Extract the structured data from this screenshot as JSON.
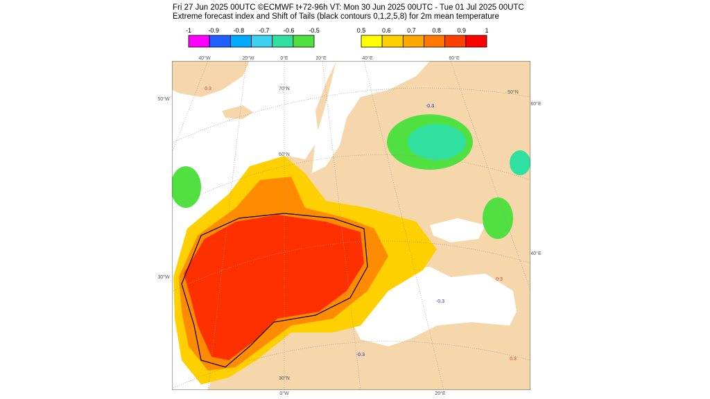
{
  "header": {
    "line1": "Fri 27 Jun 2025 00UTC ©ECMWF t+72-96h  VT: Mon 30 Jun 2025 00UTC - Tue 01 Jul 2025 00UTC",
    "line2": "Extreme forecast index and Shift of Tails (black contours 0,1,2,5,8) for 2m mean temperature"
  },
  "colorbar_negative": {
    "labels": [
      "-1",
      "-0.9",
      "-0.8",
      "-0.7",
      "-0.6",
      "-0.5"
    ],
    "colors": [
      "#ff00ff",
      "#2060ff",
      "#00aaff",
      "#40d0f0",
      "#30e0a0",
      "#50e040"
    ]
  },
  "colorbar_positive": {
    "labels": [
      "0.5",
      "0.6",
      "0.7",
      "0.8",
      "0.9",
      "1"
    ],
    "colors": [
      "#ffff00",
      "#ffd000",
      "#ffa800",
      "#ff7800",
      "#ff4000",
      "#ff0000"
    ]
  },
  "map": {
    "lon_labels_top": [
      "40°W",
      "20°W",
      "0°E",
      "20°E",
      "40°E",
      "60°E"
    ],
    "lon_labels_bottom": [
      "0°W",
      "20°E"
    ],
    "lat_labels": [
      "70°N",
      "60°N",
      "50°N",
      "30°N"
    ],
    "edge_labels": [
      "60°E",
      "40°E",
      "50°W",
      "30°W"
    ],
    "contour_labels": [
      "0.3",
      "-0.3",
      "0.3",
      "-0.3",
      "0.3",
      "-0.3"
    ]
  }
}
